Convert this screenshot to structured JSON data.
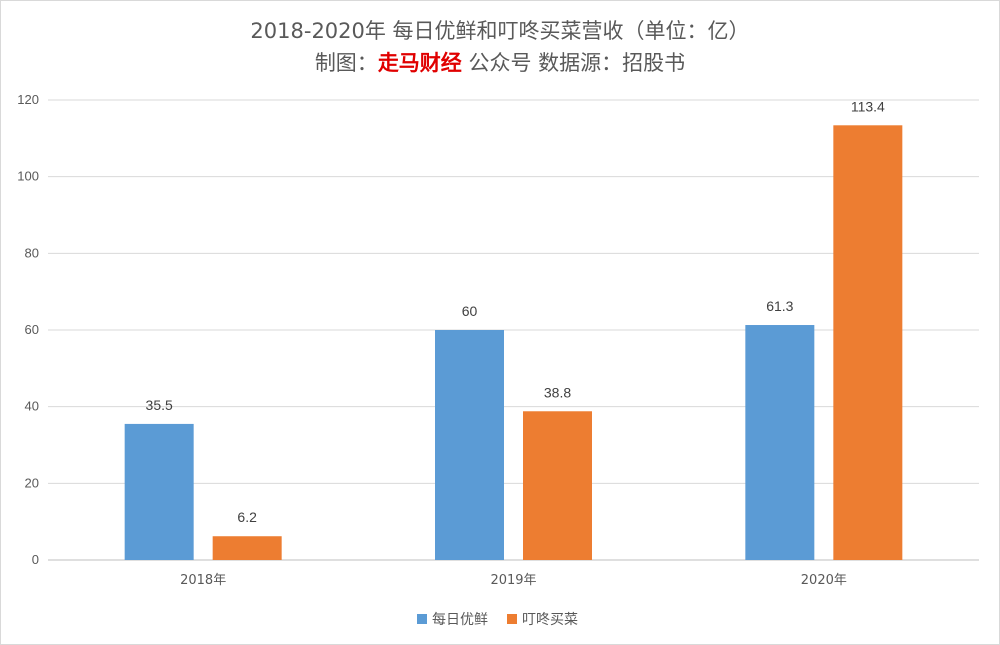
{
  "title": {
    "line1": "2018-2020年 每日优鲜和叮咚买菜营收（单位：亿）",
    "line2_prefix": "制图：",
    "line2_brand": "走马财经",
    "line2_suffix": " 公众号 数据源：招股书"
  },
  "colors": {
    "series1": "#5b9bd5",
    "series2": "#ed7d31",
    "grid": "#d9d9d9",
    "text": "#595959"
  },
  "chart_data": {
    "type": "bar",
    "categories": [
      "2018年",
      "2019年",
      "2020年"
    ],
    "series": [
      {
        "name": "每日优鲜",
        "values": [
          35.5,
          60,
          61.3
        ],
        "labels": [
          "35.5",
          "60",
          "61.3"
        ]
      },
      {
        "name": "叮咚买菜",
        "values": [
          6.2,
          38.8,
          113.4
        ],
        "labels": [
          "6.2",
          "38.8",
          "113.4"
        ]
      }
    ],
    "ylim": [
      0,
      120
    ],
    "yticks": [
      0,
      20,
      40,
      60,
      80,
      100,
      120
    ],
    "grid": true,
    "legend": "bottom"
  }
}
